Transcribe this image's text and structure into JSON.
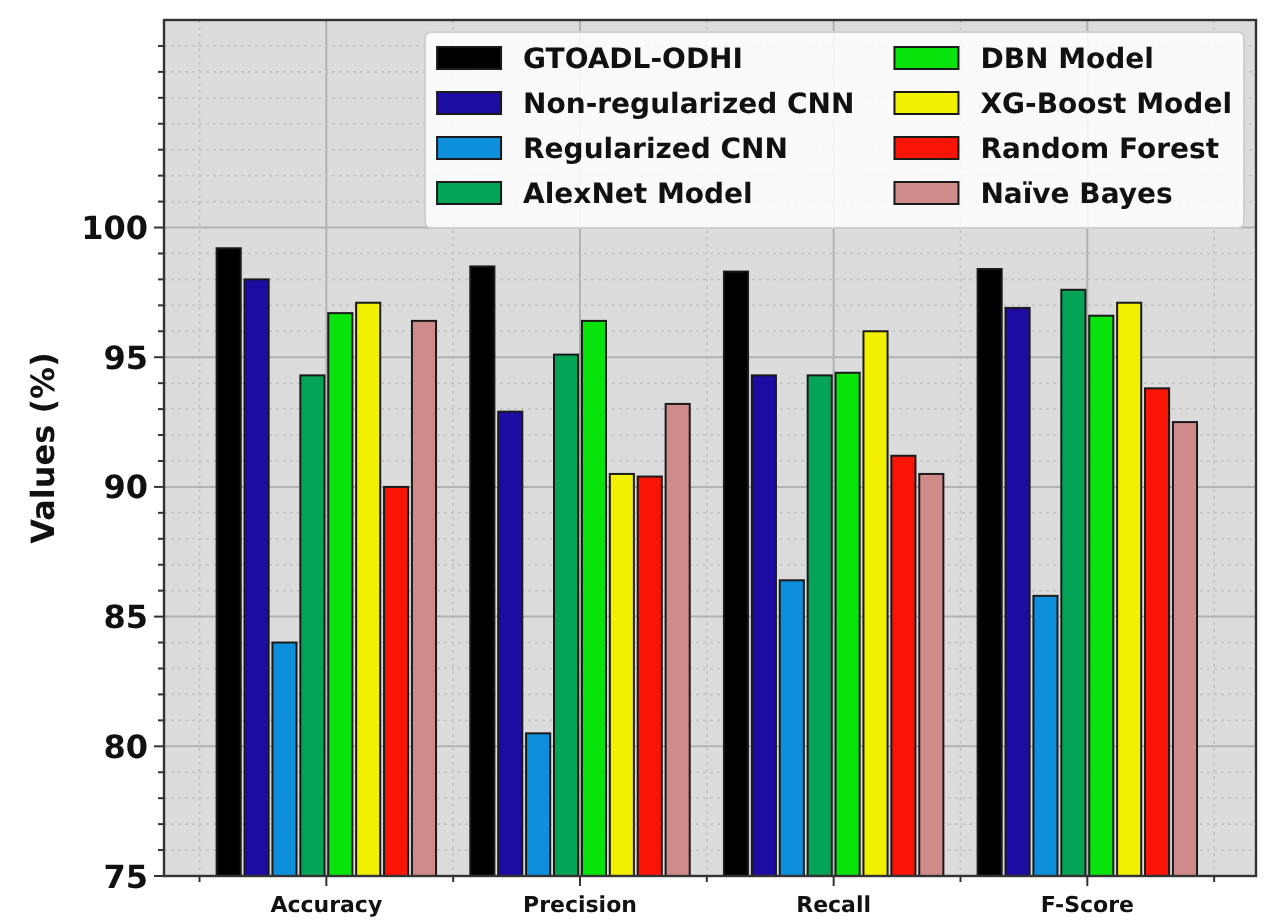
{
  "chart_data": {
    "type": "bar",
    "ylabel": "Values (%)",
    "categories": [
      "Accuracy",
      "Precision",
      "Recall",
      "F-Score"
    ],
    "series": [
      {
        "name": "GTOADL-ODHI",
        "color": "#000000",
        "values": [
          99.2,
          98.5,
          98.3,
          98.4
        ]
      },
      {
        "name": "Non-regularized CNN",
        "color": "#1c0ca2",
        "values": [
          98.0,
          92.9,
          94.3,
          96.9
        ]
      },
      {
        "name": "Regularized CNN",
        "color": "#0e8fdc",
        "values": [
          84.0,
          80.5,
          86.4,
          85.8
        ]
      },
      {
        "name": "AlexNet Model",
        "color": "#03a455",
        "values": [
          94.3,
          95.1,
          94.3,
          97.6
        ]
      },
      {
        "name": "DBN Model",
        "color": "#08e30c",
        "values": [
          96.7,
          96.4,
          94.4,
          96.6
        ]
      },
      {
        "name": "XG-Boost Model",
        "color": "#f0f000",
        "values": [
          97.1,
          90.5,
          96.0,
          97.1
        ]
      },
      {
        "name": "Random Forest",
        "color": "#fa1405",
        "values": [
          90.0,
          90.4,
          91.2,
          93.8
        ]
      },
      {
        "name": "Naïve Bayes",
        "color": "#cf8a8a",
        "values": [
          96.4,
          93.2,
          90.5,
          92.5
        ]
      }
    ],
    "ylim": [
      75,
      108
    ],
    "yticks": [
      75,
      {
        "value": 76,
        "label": null
      },
      {
        "value": 77,
        "label": null
      },
      {
        "value": 78,
        "label": null
      },
      {
        "value": 79,
        "label": null
      },
      80,
      {
        "value": 81,
        "label": null
      },
      {
        "value": 82,
        "label": null
      },
      {
        "value": 83,
        "label": null
      },
      {
        "value": 84,
        "label": null
      },
      85,
      {
        "value": 86,
        "label": null
      },
      {
        "value": 87,
        "label": null
      },
      {
        "value": 88,
        "label": null
      },
      {
        "value": 89,
        "label": null
      },
      90,
      {
        "value": 91,
        "label": null
      },
      {
        "value": 92,
        "label": null
      },
      {
        "value": 93,
        "label": null
      },
      {
        "value": 94,
        "label": null
      },
      95,
      {
        "value": 96,
        "label": null
      },
      {
        "value": 97,
        "label": null
      },
      {
        "value": 98,
        "label": null
      },
      {
        "value": 99,
        "label": null
      },
      100,
      {
        "value": 101,
        "label": null
      },
      {
        "value": 102,
        "label": null
      },
      {
        "value": 103,
        "label": null
      },
      {
        "value": 104,
        "label": null
      },
      {
        "value": 105,
        "label": null
      },
      {
        "value": 106,
        "label": null
      },
      {
        "value": 107,
        "label": null
      }
    ],
    "grid": true,
    "legend": "top right"
  }
}
